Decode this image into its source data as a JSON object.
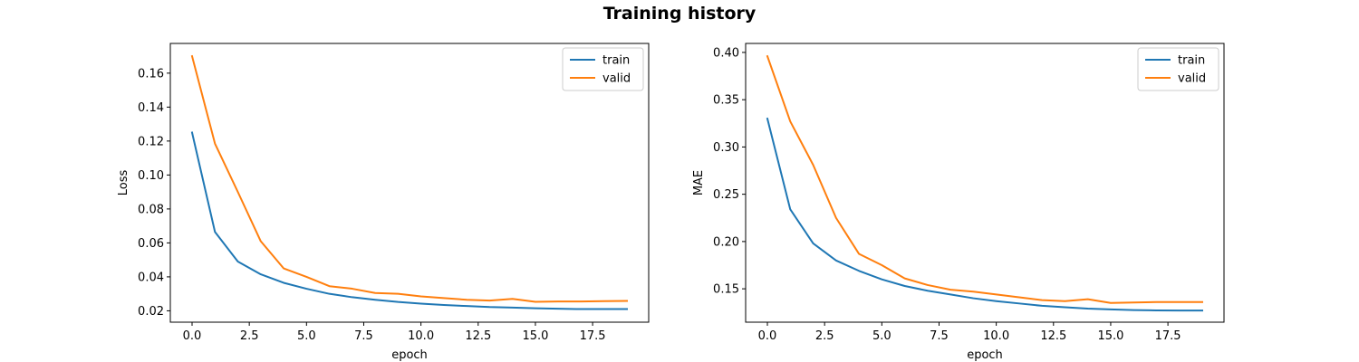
{
  "figure": {
    "title": "Training history"
  },
  "chart_data": [
    {
      "type": "line",
      "xlabel": "epoch",
      "ylabel": "Loss",
      "xlim": [
        -0.95,
        19.95
      ],
      "ylim": [
        0.0133,
        0.1775
      ],
      "xticks": [
        0.0,
        2.5,
        5.0,
        7.5,
        10.0,
        12.5,
        15.0,
        17.5
      ],
      "xtick_labels": [
        "0.0",
        "2.5",
        "5.0",
        "7.5",
        "10.0",
        "12.5",
        "15.0",
        "17.5"
      ],
      "yticks": [
        0.02,
        0.04,
        0.06,
        0.08,
        0.1,
        0.12,
        0.14,
        0.16
      ],
      "ytick_labels": [
        "0.02",
        "0.04",
        "0.06",
        "0.08",
        "0.10",
        "0.12",
        "0.14",
        "0.16"
      ],
      "legend": "top-right",
      "grid": false,
      "x": [
        0,
        1,
        2,
        3,
        4,
        5,
        6,
        7,
        8,
        9,
        10,
        11,
        12,
        13,
        14,
        15,
        16,
        17,
        18,
        19
      ],
      "series": [
        {
          "name": "train",
          "color": "#1f77b4",
          "values": [
            0.125,
            0.0665,
            0.049,
            0.0415,
            0.0365,
            0.033,
            0.03,
            0.028,
            0.0265,
            0.0252,
            0.0242,
            0.0234,
            0.0228,
            0.0222,
            0.0219,
            0.0215,
            0.0212,
            0.021,
            0.021,
            0.021
          ]
        },
        {
          "name": "valid",
          "color": "#ff7f0e",
          "values": [
            0.17,
            0.1185,
            0.09,
            0.061,
            0.045,
            0.04,
            0.0345,
            0.033,
            0.0305,
            0.03,
            0.0285,
            0.0275,
            0.0265,
            0.026,
            0.027,
            0.0253,
            0.0255,
            0.0255,
            0.0257,
            0.0258
          ]
        }
      ]
    },
    {
      "type": "line",
      "xlabel": "epoch",
      "ylabel": "MAE",
      "xlim": [
        -0.95,
        19.95
      ],
      "ylim": [
        0.1147,
        0.4095
      ],
      "xticks": [
        0.0,
        2.5,
        5.0,
        7.5,
        10.0,
        12.5,
        15.0,
        17.5
      ],
      "xtick_labels": [
        "0.0",
        "2.5",
        "5.0",
        "7.5",
        "10.0",
        "12.5",
        "15.0",
        "17.5"
      ],
      "yticks": [
        0.15,
        0.2,
        0.25,
        0.3,
        0.35,
        0.4
      ],
      "ytick_labels": [
        "0.15",
        "0.20",
        "0.25",
        "0.30",
        "0.35",
        "0.40"
      ],
      "legend": "top-right",
      "grid": false,
      "x": [
        0,
        1,
        2,
        3,
        4,
        5,
        6,
        7,
        8,
        9,
        10,
        11,
        12,
        13,
        14,
        15,
        16,
        17,
        18,
        19
      ],
      "series": [
        {
          "name": "train",
          "color": "#1f77b4",
          "values": [
            0.33,
            0.234,
            0.198,
            0.18,
            0.169,
            0.16,
            0.153,
            0.148,
            0.144,
            0.14,
            0.137,
            0.1345,
            0.132,
            0.1305,
            0.129,
            0.1282,
            0.1275,
            0.1272,
            0.127,
            0.127
          ]
        },
        {
          "name": "valid",
          "color": "#ff7f0e",
          "values": [
            0.396,
            0.327,
            0.281,
            0.225,
            0.187,
            0.175,
            0.161,
            0.154,
            0.149,
            0.147,
            0.144,
            0.141,
            0.138,
            0.137,
            0.139,
            0.135,
            0.1355,
            0.136,
            0.136,
            0.136
          ]
        }
      ]
    }
  ]
}
